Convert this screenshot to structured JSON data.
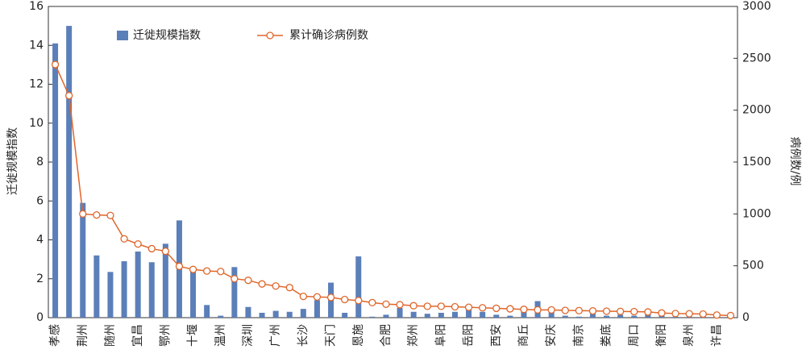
{
  "chart_data": {
    "type": "bar_line",
    "categories": [
      "孝感",
      null,
      "荆州",
      null,
      "随州",
      null,
      "宜昌",
      null,
      "鄂州",
      null,
      "十堰",
      null,
      "温州",
      null,
      "深圳",
      null,
      "广州",
      null,
      "长沙",
      null,
      "天门",
      null,
      "恩施",
      null,
      "合肥",
      null,
      "郑州",
      null,
      "阜阳",
      null,
      "岳阳",
      null,
      "西安",
      null,
      "商丘",
      null,
      "安庆",
      null,
      "南京",
      null,
      "娄底",
      null,
      "周口",
      null,
      "衡阳",
      null,
      "泉州",
      null,
      "许昌",
      null
    ],
    "series": [
      {
        "name": "迁徙规模指数",
        "type": "bar",
        "color": "#5b7fb8",
        "values": [
          14.1,
          15.0,
          5.9,
          3.2,
          2.35,
          2.9,
          3.4,
          2.85,
          3.8,
          5.0,
          2.35,
          0.65,
          0.1,
          2.6,
          0.55,
          0.25,
          0.35,
          0.3,
          0.45,
          0.9,
          1.8,
          0.25,
          3.15,
          0.05,
          0.15,
          0.5,
          0.3,
          0.2,
          0.25,
          0.3,
          0.4,
          0.3,
          0.15,
          0.1,
          0.3,
          0.85,
          0.3,
          0.1,
          0.05,
          0.2,
          0.1,
          0.15,
          0.1,
          0.2,
          0.1,
          0.05,
          0.05,
          0.05,
          0.05,
          0.05
        ]
      },
      {
        "name": "累计确诊病例数",
        "type": "line",
        "axis": "y2",
        "color": "#e0662a",
        "values": [
          2440,
          2140,
          1000,
          990,
          985,
          760,
          710,
          665,
          640,
          495,
          465,
          450,
          445,
          375,
          360,
          325,
          305,
          290,
          205,
          200,
          195,
          175,
          165,
          145,
          130,
          125,
          115,
          110,
          110,
          105,
          100,
          95,
          90,
          85,
          80,
          75,
          75,
          70,
          68,
          65,
          62,
          60,
          58,
          55,
          45,
          40,
          38,
          35,
          25,
          20
        ]
      }
    ],
    "ylabel": "迁徙规模指数",
    "y2label": "病例数/例",
    "ylim": [
      0,
      16
    ],
    "yticks": [
      0,
      2,
      4,
      6,
      8,
      10,
      12,
      14,
      16
    ],
    "y2lim": [
      0,
      3000
    ],
    "y2ticks": [
      0,
      500,
      1000,
      1500,
      2000,
      2500,
      3000
    ],
    "grid": false,
    "legend": "top"
  }
}
